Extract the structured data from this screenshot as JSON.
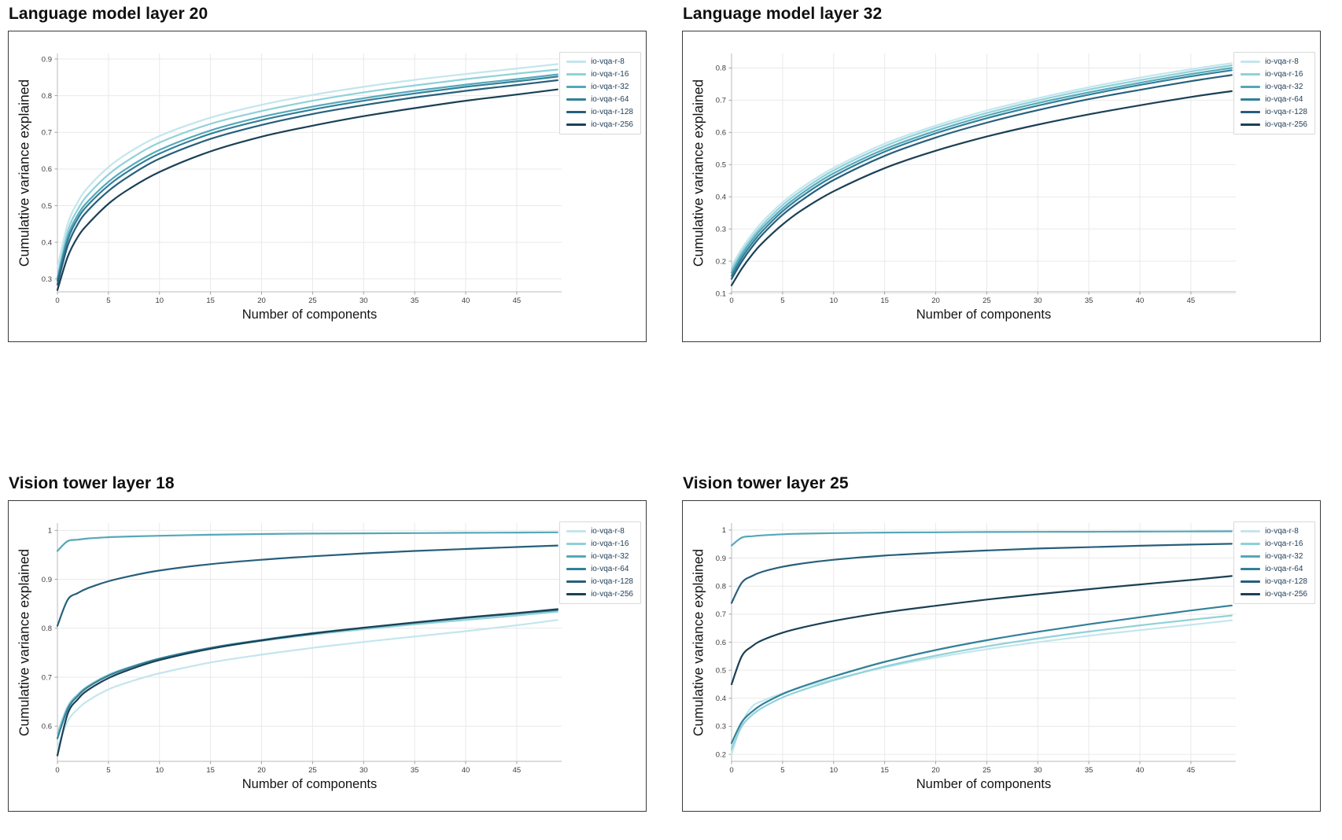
{
  "theme": {
    "panel_border": "#3a3a3a",
    "grid_color": "#e9e9e9",
    "spine_color": "#c6c6c6",
    "tick_color": "#9a9a9a",
    "tick_label_color": "#3c3c3c",
    "title_color": "#0f0f0f",
    "axis_label_color": "#141414",
    "legend_text_color": "#1f3c55",
    "series_palette": [
      "#c3e6ed",
      "#90d1d8",
      "#55a8ba",
      "#32809a",
      "#275f7b",
      "#1b4055"
    ]
  },
  "chart_data": [
    {
      "type": "line",
      "title": "Language model layer 20",
      "xlabel": "Number of components",
      "ylabel": "Cumulative variance explained",
      "grid": true,
      "legend_position": "upper right",
      "xlim": [
        0,
        49.4
      ],
      "ylim": [
        0.265,
        0.915
      ],
      "x_ticks": [
        0,
        5,
        10,
        15,
        20,
        25,
        30,
        35,
        40,
        45
      ],
      "y_ticks": [
        0.3,
        0.4,
        0.5,
        0.6,
        0.7,
        0.8,
        0.9
      ],
      "x": [
        0,
        1,
        2,
        3,
        5,
        7,
        10,
        15,
        20,
        25,
        30,
        35,
        40,
        45,
        49
      ],
      "series": [
        {
          "name": "io-vqa-r-8",
          "color": "#c3e6ed",
          "values": [
            0.33,
            0.45,
            0.51,
            0.55,
            0.605,
            0.645,
            0.69,
            0.74,
            0.775,
            0.802,
            0.824,
            0.843,
            0.859,
            0.874,
            0.886
          ]
        },
        {
          "name": "io-vqa-r-16",
          "color": "#90d1d8",
          "values": [
            0.305,
            0.43,
            0.49,
            0.53,
            0.585,
            0.625,
            0.672,
            0.723,
            0.758,
            0.786,
            0.809,
            0.828,
            0.845,
            0.86,
            0.871
          ]
        },
        {
          "name": "io-vqa-r-32",
          "color": "#55a8ba",
          "values": [
            0.3,
            0.415,
            0.475,
            0.512,
            0.565,
            0.605,
            0.652,
            0.705,
            0.742,
            0.77,
            0.793,
            0.813,
            0.83,
            0.845,
            0.858
          ]
        },
        {
          "name": "io-vqa-r-64",
          "color": "#32809a",
          "values": [
            0.295,
            0.405,
            0.465,
            0.502,
            0.555,
            0.595,
            0.642,
            0.696,
            0.733,
            0.762,
            0.786,
            0.806,
            0.824,
            0.839,
            0.852
          ]
        },
        {
          "name": "io-vqa-r-128",
          "color": "#275f7b",
          "values": [
            0.285,
            0.39,
            0.45,
            0.487,
            0.54,
            0.58,
            0.628,
            0.682,
            0.72,
            0.75,
            0.774,
            0.795,
            0.813,
            0.829,
            0.842
          ]
        },
        {
          "name": "io-vqa-r-256",
          "color": "#1b4055",
          "values": [
            0.27,
            0.36,
            0.415,
            0.45,
            0.505,
            0.545,
            0.592,
            0.648,
            0.688,
            0.718,
            0.744,
            0.766,
            0.786,
            0.803,
            0.817
          ]
        }
      ]
    },
    {
      "type": "line",
      "title": "Language model layer 32",
      "xlabel": "Number of components",
      "ylabel": "Cumulative variance explained",
      "grid": true,
      "legend_position": "upper right",
      "xlim": [
        0,
        49.4
      ],
      "ylim": [
        0.105,
        0.845
      ],
      "x_ticks": [
        0,
        5,
        10,
        15,
        20,
        25,
        30,
        35,
        40,
        45
      ],
      "y_ticks": [
        0.1,
        0.2,
        0.3,
        0.4,
        0.5,
        0.6,
        0.7,
        0.8
      ],
      "x": [
        0,
        1,
        2,
        3,
        5,
        7,
        10,
        15,
        20,
        25,
        30,
        35,
        40,
        45,
        49
      ],
      "series": [
        {
          "name": "io-vqa-r-8",
          "color": "#c3e6ed",
          "values": [
            0.185,
            0.239,
            0.284,
            0.322,
            0.383,
            0.431,
            0.49,
            0.565,
            0.621,
            0.668,
            0.706,
            0.74,
            0.77,
            0.796,
            0.815
          ]
        },
        {
          "name": "io-vqa-r-16",
          "color": "#90d1d8",
          "values": [
            0.175,
            0.229,
            0.274,
            0.312,
            0.374,
            0.422,
            0.482,
            0.557,
            0.614,
            0.66,
            0.699,
            0.733,
            0.762,
            0.789,
            0.808
          ]
        },
        {
          "name": "io-vqa-r-32",
          "color": "#55a8ba",
          "values": [
            0.165,
            0.22,
            0.265,
            0.303,
            0.364,
            0.413,
            0.473,
            0.548,
            0.605,
            0.652,
            0.691,
            0.724,
            0.754,
            0.781,
            0.8
          ]
        },
        {
          "name": "io-vqa-r-64",
          "color": "#32809a",
          "values": [
            0.155,
            0.21,
            0.255,
            0.293,
            0.355,
            0.404,
            0.464,
            0.54,
            0.597,
            0.644,
            0.683,
            0.717,
            0.747,
            0.774,
            0.793
          ]
        },
        {
          "name": "io-vqa-r-128",
          "color": "#275f7b",
          "values": [
            0.145,
            0.199,
            0.244,
            0.282,
            0.344,
            0.392,
            0.452,
            0.527,
            0.584,
            0.63,
            0.669,
            0.703,
            0.732,
            0.759,
            0.778
          ]
        },
        {
          "name": "io-vqa-r-256",
          "color": "#1b4055",
          "values": [
            0.125,
            0.177,
            0.22,
            0.256,
            0.314,
            0.361,
            0.417,
            0.489,
            0.543,
            0.587,
            0.624,
            0.656,
            0.684,
            0.71,
            0.728
          ]
        }
      ]
    },
    {
      "type": "line",
      "title": "Vision tower layer 18",
      "xlabel": "Number of components",
      "ylabel": "Cumulative variance explained",
      "grid": true,
      "legend_position": "upper right",
      "xlim": [
        0,
        49.4
      ],
      "ylim": [
        0.528,
        1.015
      ],
      "x_ticks": [
        0,
        5,
        10,
        15,
        20,
        25,
        30,
        35,
        40,
        45
      ],
      "y_ticks": [
        0.6,
        0.7,
        0.8,
        0.9,
        1
      ],
      "x": [
        0,
        1,
        2,
        3,
        5,
        7,
        10,
        15,
        20,
        25,
        30,
        35,
        40,
        45,
        49
      ],
      "series": [
        {
          "name": "io-vqa-r-8",
          "color": "#c3e6ed",
          "values": [
            0.555,
            0.61,
            0.635,
            0.652,
            0.675,
            0.69,
            0.708,
            0.73,
            0.746,
            0.76,
            0.772,
            0.783,
            0.794,
            0.806,
            0.817
          ]
        },
        {
          "name": "io-vqa-r-16",
          "color": "#90d1d8",
          "values": [
            0.585,
            0.64,
            0.665,
            0.682,
            0.705,
            0.72,
            0.738,
            0.759,
            0.774,
            0.787,
            0.798,
            0.808,
            0.817,
            0.826,
            0.834
          ]
        },
        {
          "name": "io-vqa-r-32",
          "color": "#55a8ba",
          "values": [
            0.958,
            0.978,
            0.981,
            0.9835,
            0.986,
            0.9875,
            0.989,
            0.991,
            0.9925,
            0.9935,
            0.994,
            0.9945,
            0.995,
            0.9955,
            0.996
          ]
        },
        {
          "name": "io-vqa-r-64",
          "color": "#32809a",
          "values": [
            0.575,
            0.635,
            0.662,
            0.68,
            0.703,
            0.719,
            0.738,
            0.76,
            0.776,
            0.79,
            0.801,
            0.811,
            0.821,
            0.83,
            0.837
          ]
        },
        {
          "name": "io-vqa-r-128",
          "color": "#275f7b",
          "values": [
            0.805,
            0.858,
            0.872,
            0.882,
            0.896,
            0.906,
            0.918,
            0.931,
            0.94,
            0.947,
            0.953,
            0.958,
            0.962,
            0.966,
            0.969
          ]
        },
        {
          "name": "io-vqa-r-256",
          "color": "#1b4055",
          "values": [
            0.54,
            0.625,
            0.655,
            0.674,
            0.698,
            0.715,
            0.735,
            0.758,
            0.775,
            0.789,
            0.801,
            0.812,
            0.822,
            0.831,
            0.839
          ]
        }
      ]
    },
    {
      "type": "line",
      "title": "Vision tower layer 25",
      "xlabel": "Number of components",
      "ylabel": "Cumulative variance explained",
      "grid": true,
      "legend_position": "upper right",
      "xlim": [
        0,
        49.4
      ],
      "ylim": [
        0.175,
        1.025
      ],
      "x_ticks": [
        0,
        5,
        10,
        15,
        20,
        25,
        30,
        35,
        40,
        45
      ],
      "y_ticks": [
        0.2,
        0.3,
        0.4,
        0.5,
        0.6,
        0.7,
        0.8,
        0.9,
        1
      ],
      "x": [
        0,
        1,
        2,
        3,
        5,
        7,
        10,
        15,
        20,
        25,
        30,
        35,
        40,
        45,
        49
      ],
      "series": [
        {
          "name": "io-vqa-r-8",
          "color": "#c3e6ed",
          "values": [
            0.2,
            0.31,
            0.37,
            0.39,
            0.418,
            0.44,
            0.468,
            0.51,
            0.545,
            0.575,
            0.6,
            0.623,
            0.643,
            0.662,
            0.678
          ]
        },
        {
          "name": "io-vqa-r-16",
          "color": "#90d1d8",
          "values": [
            0.22,
            0.3,
            0.34,
            0.366,
            0.403,
            0.43,
            0.464,
            0.513,
            0.552,
            0.585,
            0.613,
            0.638,
            0.66,
            0.68,
            0.695
          ]
        },
        {
          "name": "io-vqa-r-32",
          "color": "#55a8ba",
          "values": [
            0.945,
            0.973,
            0.978,
            0.981,
            0.985,
            0.987,
            0.989,
            0.991,
            0.992,
            0.993,
            0.9935,
            0.994,
            0.9945,
            0.995,
            0.9955
          ]
        },
        {
          "name": "io-vqa-r-64",
          "color": "#32809a",
          "values": [
            0.24,
            0.315,
            0.352,
            0.378,
            0.415,
            0.443,
            0.478,
            0.53,
            0.572,
            0.607,
            0.637,
            0.664,
            0.689,
            0.713,
            0.731
          ]
        },
        {
          "name": "io-vqa-r-128",
          "color": "#275f7b",
          "values": [
            0.74,
            0.812,
            0.836,
            0.851,
            0.869,
            0.881,
            0.894,
            0.909,
            0.919,
            0.927,
            0.934,
            0.939,
            0.944,
            0.948,
            0.951
          ]
        },
        {
          "name": "io-vqa-r-256",
          "color": "#1b4055",
          "values": [
            0.45,
            0.55,
            0.585,
            0.607,
            0.634,
            0.653,
            0.676,
            0.706,
            0.73,
            0.752,
            0.771,
            0.789,
            0.806,
            0.822,
            0.836
          ]
        }
      ]
    }
  ]
}
